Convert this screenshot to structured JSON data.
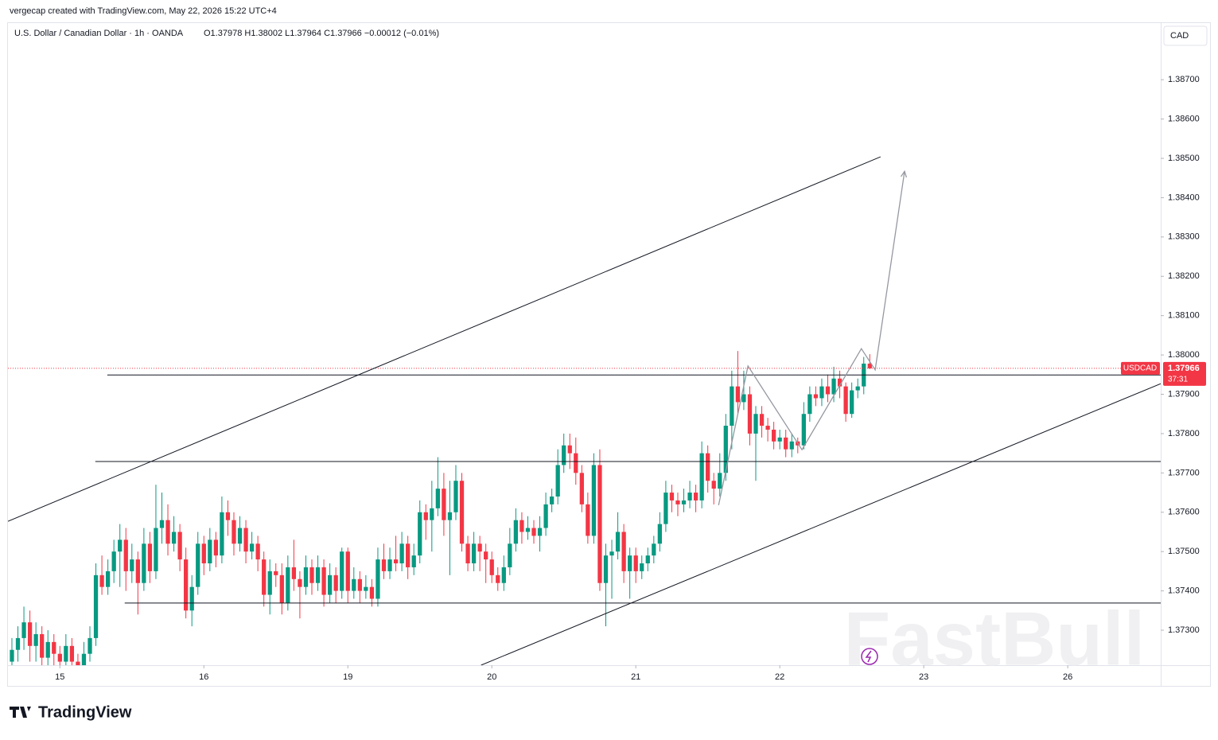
{
  "credit": "vergecap created with TradingView.com, May 22, 2026 15:22 UTC+4",
  "footer": {
    "logo": "TradingView"
  },
  "watermark": "FastBull",
  "chart_data": {
    "type": "candlestick",
    "title": "U.S. Dollar / Canadian Dollar · 1h · OANDA",
    "legend_text": "O1.37978 H1.38002 L1.37964 C1.37966 −0.00012 (−0.01%)",
    "currency": "CAD",
    "symbol": "USDCAD",
    "last_price": 1.37966,
    "last_price_label": "1.37966",
    "countdown": "37:31",
    "up_color": "#089981",
    "down_color": "#f23645",
    "xlim": [
      -0.66,
      191.5
    ],
    "ylim": [
      1.37211,
      1.38842
    ],
    "xticks": [
      {
        "value": 8,
        "label": "15"
      },
      {
        "value": 32,
        "label": "16"
      },
      {
        "value": 56,
        "label": "19"
      },
      {
        "value": 80,
        "label": "20"
      },
      {
        "value": 104,
        "label": "21"
      },
      {
        "value": 128,
        "label": "22"
      },
      {
        "value": 152,
        "label": "23"
      },
      {
        "value": 176,
        "label": "26"
      }
    ],
    "yticks": [
      {
        "value": 1.373,
        "label": "1.37300"
      },
      {
        "value": 1.374,
        "label": "1.37400"
      },
      {
        "value": 1.375,
        "label": "1.37500"
      },
      {
        "value": 1.376,
        "label": "1.37600"
      },
      {
        "value": 1.377,
        "label": "1.37700"
      },
      {
        "value": 1.378,
        "label": "1.37800"
      },
      {
        "value": 1.379,
        "label": "1.37900"
      },
      {
        "value": 1.38,
        "label": "1.38000"
      },
      {
        "value": 1.381,
        "label": "1.38100"
      },
      {
        "value": 1.382,
        "label": "1.38200"
      },
      {
        "value": 1.383,
        "label": "1.38300"
      },
      {
        "value": 1.384,
        "label": "1.38400"
      },
      {
        "value": 1.385,
        "label": "1.38500"
      },
      {
        "value": 1.386,
        "label": "1.38600"
      },
      {
        "value": 1.387,
        "label": "1.38700"
      }
    ],
    "ohlc": [
      [
        1.3722,
        1.3728,
        1.3719,
        1.3725
      ],
      [
        1.3725,
        1.3731,
        1.3722,
        1.3728
      ],
      [
        1.3728,
        1.3736,
        1.3725,
        1.3732
      ],
      [
        1.3732,
        1.3735,
        1.3722,
        1.3726
      ],
      [
        1.3726,
        1.3732,
        1.3722,
        1.3729
      ],
      [
        1.3729,
        1.3731,
        1.372,
        1.3723
      ],
      [
        1.3723,
        1.373,
        1.372,
        1.3727
      ],
      [
        1.3727,
        1.3729,
        1.3721,
        1.3724
      ],
      [
        1.3724,
        1.3726,
        1.3719,
        1.3722
      ],
      [
        1.3722,
        1.3729,
        1.372,
        1.3726
      ],
      [
        1.3726,
        1.3728,
        1.3719,
        1.3722
      ],
      [
        1.3722,
        1.3724,
        1.3717,
        1.372
      ],
      [
        1.372,
        1.3727,
        1.3718,
        1.3724
      ],
      [
        1.3724,
        1.3731,
        1.3722,
        1.3728
      ],
      [
        1.3728,
        1.3747,
        1.3726,
        1.3744
      ],
      [
        1.3744,
        1.3749,
        1.3739,
        1.3741
      ],
      [
        1.3741,
        1.3748,
        1.3739,
        1.3745
      ],
      [
        1.3745,
        1.3753,
        1.3742,
        1.375
      ],
      [
        1.375,
        1.3757,
        1.3741,
        1.3753
      ],
      [
        1.3753,
        1.3756,
        1.374,
        1.3745
      ],
      [
        1.3745,
        1.3752,
        1.3742,
        1.3748
      ],
      [
        1.3748,
        1.375,
        1.3734,
        1.3742
      ],
      [
        1.3742,
        1.3756,
        1.374,
        1.3752
      ],
      [
        1.3752,
        1.3755,
        1.3742,
        1.3745
      ],
      [
        1.3745,
        1.3767,
        1.3743,
        1.3756
      ],
      [
        1.3756,
        1.3765,
        1.3752,
        1.3758
      ],
      [
        1.3758,
        1.3762,
        1.3749,
        1.3752
      ],
      [
        1.3752,
        1.3759,
        1.375,
        1.3755
      ],
      [
        1.3755,
        1.3757,
        1.3745,
        1.3748
      ],
      [
        1.3748,
        1.3751,
        1.3733,
        1.3735
      ],
      [
        1.3735,
        1.3744,
        1.3731,
        1.3741
      ],
      [
        1.3741,
        1.3755,
        1.3739,
        1.3752
      ],
      [
        1.3752,
        1.3754,
        1.3744,
        1.3747
      ],
      [
        1.3747,
        1.3756,
        1.3745,
        1.3753
      ],
      [
        1.3753,
        1.3755,
        1.3746,
        1.3749
      ],
      [
        1.3749,
        1.3764,
        1.3747,
        1.376
      ],
      [
        1.376,
        1.3763,
        1.3754,
        1.3758
      ],
      [
        1.3758,
        1.376,
        1.3749,
        1.3752
      ],
      [
        1.3752,
        1.3759,
        1.375,
        1.3756
      ],
      [
        1.3756,
        1.3758,
        1.3747,
        1.375
      ],
      [
        1.375,
        1.3755,
        1.3748,
        1.3752
      ],
      [
        1.3752,
        1.3754,
        1.3745,
        1.3748
      ],
      [
        1.3748,
        1.375,
        1.3736,
        1.3739
      ],
      [
        1.3739,
        1.3748,
        1.3734,
        1.3745
      ],
      [
        1.3745,
        1.3747,
        1.3741,
        1.3744
      ],
      [
        1.3744,
        1.3747,
        1.3734,
        1.3737
      ],
      [
        1.3737,
        1.3749,
        1.3735,
        1.3746
      ],
      [
        1.3746,
        1.3753,
        1.374,
        1.3743
      ],
      [
        1.3743,
        1.3745,
        1.3733,
        1.3741
      ],
      [
        1.3741,
        1.3749,
        1.3739,
        1.3746
      ],
      [
        1.3746,
        1.3748,
        1.3739,
        1.3742
      ],
      [
        1.3742,
        1.3749,
        1.374,
        1.3746
      ],
      [
        1.3746,
        1.3748,
        1.3736,
        1.3739
      ],
      [
        1.3739,
        1.3747,
        1.3737,
        1.3744
      ],
      [
        1.3744,
        1.3746,
        1.3737,
        1.374
      ],
      [
        1.374,
        1.3751,
        1.3738,
        1.375
      ],
      [
        1.375,
        1.3751,
        1.3737,
        1.374
      ],
      [
        1.374,
        1.3746,
        1.3738,
        1.3743
      ],
      [
        1.3743,
        1.3745,
        1.3737,
        1.374
      ],
      [
        1.374,
        1.3744,
        1.3738,
        1.3741
      ],
      [
        1.3741,
        1.3743,
        1.3736,
        1.3738
      ],
      [
        1.3738,
        1.3751,
        1.3736,
        1.3748
      ],
      [
        1.3748,
        1.3752,
        1.3743,
        1.3745
      ],
      [
        1.3745,
        1.3751,
        1.3743,
        1.3748
      ],
      [
        1.3748,
        1.3754,
        1.3745,
        1.3747
      ],
      [
        1.3747,
        1.3755,
        1.3745,
        1.3752
      ],
      [
        1.3752,
        1.3754,
        1.3743,
        1.3746
      ],
      [
        1.3746,
        1.3752,
        1.3744,
        1.3749
      ],
      [
        1.3749,
        1.3763,
        1.3747,
        1.376
      ],
      [
        1.376,
        1.3762,
        1.3753,
        1.3758
      ],
      [
        1.3758,
        1.3768,
        1.375,
        1.3761
      ],
      [
        1.3761,
        1.3774,
        1.3759,
        1.3766
      ],
      [
        1.3766,
        1.377,
        1.3754,
        1.3758
      ],
      [
        1.3758,
        1.3768,
        1.3744,
        1.376
      ],
      [
        1.376,
        1.3772,
        1.3758,
        1.3768
      ],
      [
        1.3768,
        1.377,
        1.375,
        1.3752
      ],
      [
        1.3752,
        1.3754,
        1.3745,
        1.3747
      ],
      [
        1.3747,
        1.3755,
        1.3745,
        1.3752
      ],
      [
        1.3752,
        1.3754,
        1.3745,
        1.375
      ],
      [
        1.375,
        1.3752,
        1.3742,
        1.3748
      ],
      [
        1.3748,
        1.375,
        1.3742,
        1.3744
      ],
      [
        1.3744,
        1.3746,
        1.374,
        1.3742
      ],
      [
        1.3742,
        1.3749,
        1.374,
        1.3746
      ],
      [
        1.3746,
        1.3756,
        1.3744,
        1.3752
      ],
      [
        1.3752,
        1.3761,
        1.375,
        1.3758
      ],
      [
        1.3758,
        1.376,
        1.3752,
        1.3755
      ],
      [
        1.3755,
        1.3759,
        1.3753,
        1.3756
      ],
      [
        1.3756,
        1.3758,
        1.3752,
        1.3754
      ],
      [
        1.3754,
        1.3759,
        1.375,
        1.3756
      ],
      [
        1.3756,
        1.3765,
        1.3754,
        1.3762
      ],
      [
        1.3762,
        1.3766,
        1.376,
        1.3764
      ],
      [
        1.3764,
        1.3776,
        1.3762,
        1.3772
      ],
      [
        1.3772,
        1.378,
        1.377,
        1.3777
      ],
      [
        1.3777,
        1.378,
        1.3771,
        1.3775
      ],
      [
        1.3775,
        1.3779,
        1.3767,
        1.377
      ],
      [
        1.377,
        1.3772,
        1.376,
        1.3762
      ],
      [
        1.3762,
        1.3765,
        1.3752,
        1.3754
      ],
      [
        1.3754,
        1.3775,
        1.3752,
        1.3772
      ],
      [
        1.3772,
        1.3776,
        1.374,
        1.3742
      ],
      [
        1.3742,
        1.3752,
        1.3731,
        1.3749
      ],
      [
        1.3749,
        1.3753,
        1.3738,
        1.375
      ],
      [
        1.375,
        1.376,
        1.3748,
        1.3755
      ],
      [
        1.3755,
        1.3757,
        1.3742,
        1.3745
      ],
      [
        1.3745,
        1.3751,
        1.3738,
        1.3749
      ],
      [
        1.3749,
        1.3751,
        1.3742,
        1.3745
      ],
      [
        1.3745,
        1.3749,
        1.3743,
        1.3747
      ],
      [
        1.3747,
        1.3751,
        1.3745,
        1.3749
      ],
      [
        1.3749,
        1.3754,
        1.3747,
        1.3752
      ],
      [
        1.3752,
        1.376,
        1.375,
        1.3757
      ],
      [
        1.3757,
        1.3768,
        1.3755,
        1.3765
      ],
      [
        1.3765,
        1.3767,
        1.376,
        1.3763
      ],
      [
        1.3763,
        1.3765,
        1.3759,
        1.3762
      ],
      [
        1.3762,
        1.3766,
        1.376,
        1.3763
      ],
      [
        1.3763,
        1.3768,
        1.3761,
        1.3765
      ],
      [
        1.3765,
        1.3767,
        1.376,
        1.3763
      ],
      [
        1.3763,
        1.3778,
        1.3761,
        1.3775
      ],
      [
        1.3775,
        1.3777,
        1.3765,
        1.3768
      ],
      [
        1.3768,
        1.377,
        1.3762,
        1.3766
      ],
      [
        1.3766,
        1.3775,
        1.3764,
        1.377
      ],
      [
        1.377,
        1.3785,
        1.3768,
        1.3782
      ],
      [
        1.3782,
        1.3796,
        1.3776,
        1.3792
      ],
      [
        1.3792,
        1.3801,
        1.3785,
        1.3788
      ],
      [
        1.3788,
        1.3796,
        1.3786,
        1.379
      ],
      [
        1.379,
        1.3792,
        1.3777,
        1.378
      ],
      [
        1.378,
        1.3787,
        1.3768,
        1.3785
      ],
      [
        1.3785,
        1.3787,
        1.3779,
        1.3782
      ],
      [
        1.3782,
        1.3784,
        1.3778,
        1.3781
      ],
      [
        1.3781,
        1.3783,
        1.3776,
        1.3778
      ],
      [
        1.3778,
        1.3781,
        1.3776,
        1.3779
      ],
      [
        1.3779,
        1.3781,
        1.3774,
        1.3776
      ],
      [
        1.3776,
        1.378,
        1.3774,
        1.3778
      ],
      [
        1.3778,
        1.3779,
        1.3775,
        1.3777
      ],
      [
        1.3777,
        1.3788,
        1.3776,
        1.3785
      ],
      [
        1.3785,
        1.3792,
        1.3783,
        1.379
      ],
      [
        1.379,
        1.3792,
        1.3787,
        1.3789
      ],
      [
        1.3789,
        1.3794,
        1.3787,
        1.3792
      ],
      [
        1.3792,
        1.3795,
        1.3788,
        1.379
      ],
      [
        1.379,
        1.3797,
        1.3788,
        1.3794
      ],
      [
        1.3794,
        1.3796,
        1.3789,
        1.3792
      ],
      [
        1.3792,
        1.3793,
        1.3783,
        1.3785
      ],
      [
        1.3785,
        1.3793,
        1.3784,
        1.3791
      ],
      [
        1.3791,
        1.3794,
        1.3789,
        1.3792
      ],
      [
        1.3792,
        1.37995,
        1.379,
        1.37978
      ],
      [
        1.37978,
        1.38002,
        1.37964,
        1.37966
      ]
    ],
    "levels": [
      {
        "x": 15.9,
        "price": 1.37949
      },
      {
        "x": 13.9,
        "price": 1.37729
      },
      {
        "x": 18.8,
        "price": 1.37369
      }
    ],
    "trendlines": [
      [
        [
          -0.66,
          1.37577
        ],
        [
          144.8,
          1.38504
        ]
      ],
      [
        [
          78.2,
          1.37211
        ],
        [
          191.5,
          1.37927
        ]
      ]
    ],
    "projection": [
      [
        117.8,
        1.37618
      ],
      [
        122.7,
        1.37972
      ],
      [
        131.7,
        1.37759
      ],
      [
        141.6,
        1.38016
      ],
      [
        143.9,
        1.37962
      ],
      [
        148.8,
        1.38467
      ]
    ]
  }
}
